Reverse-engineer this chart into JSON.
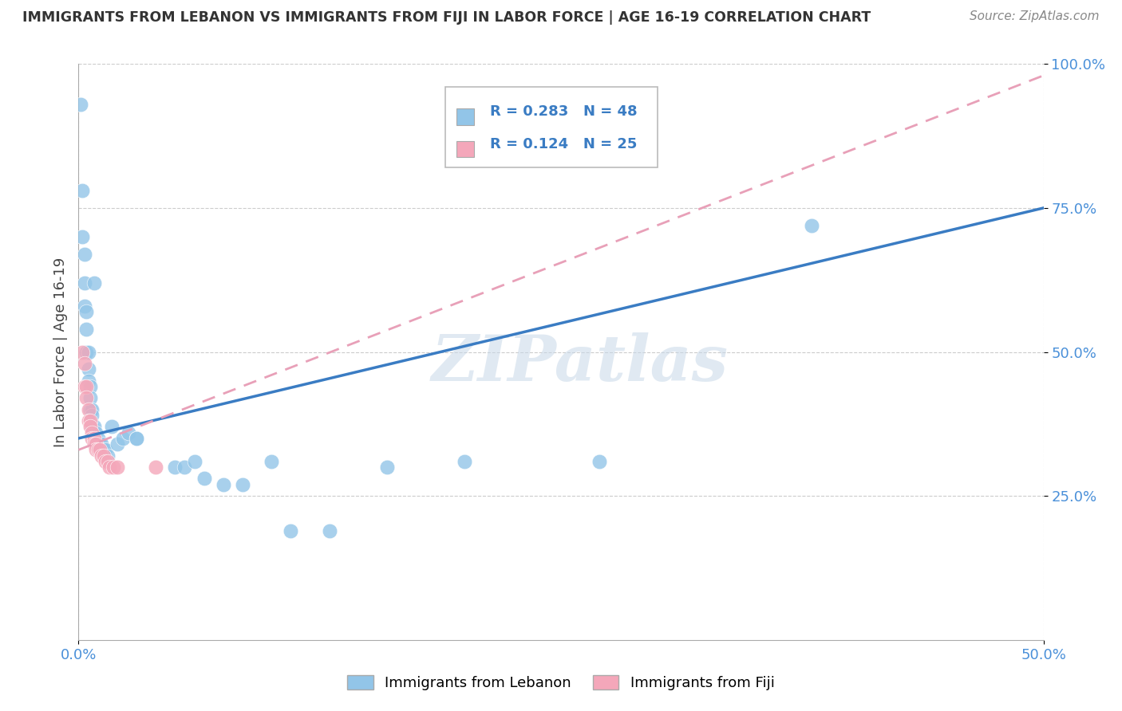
{
  "title": "IMMIGRANTS FROM LEBANON VS IMMIGRANTS FROM FIJI IN LABOR FORCE | AGE 16-19 CORRELATION CHART",
  "source": "Source: ZipAtlas.com",
  "ylabel": "In Labor Force | Age 16-19",
  "legend_r1": "R = 0.283",
  "legend_n1": "N = 48",
  "legend_r2": "R = 0.124",
  "legend_n2": "N = 25",
  "color_lebanon": "#92C5E8",
  "color_fiji": "#F4A7BA",
  "line_color_lebanon": "#3A7CC3",
  "line_color_fiji": "#E8A0B8",
  "watermark_text": "ZIPatlas",
  "lebanon_x": [
    0.001,
    0.002,
    0.002,
    0.003,
    0.003,
    0.003,
    0.004,
    0.004,
    0.004,
    0.005,
    0.005,
    0.005,
    0.006,
    0.006,
    0.006,
    0.007,
    0.007,
    0.007,
    0.008,
    0.008,
    0.009,
    0.009,
    0.01,
    0.01,
    0.011,
    0.012,
    0.013,
    0.014,
    0.015,
    0.017,
    0.02,
    0.023,
    0.026,
    0.03,
    0.03,
    0.05,
    0.055,
    0.06,
    0.065,
    0.075,
    0.085,
    0.1,
    0.11,
    0.13,
    0.16,
    0.2,
    0.27,
    0.38
  ],
  "lebanon_y": [
    0.93,
    0.78,
    0.7,
    0.67,
    0.62,
    0.58,
    0.57,
    0.54,
    0.5,
    0.5,
    0.47,
    0.45,
    0.44,
    0.42,
    0.4,
    0.4,
    0.39,
    0.37,
    0.37,
    0.62,
    0.36,
    0.35,
    0.35,
    0.34,
    0.34,
    0.34,
    0.33,
    0.33,
    0.32,
    0.37,
    0.34,
    0.35,
    0.36,
    0.35,
    0.35,
    0.3,
    0.3,
    0.31,
    0.28,
    0.27,
    0.27,
    0.31,
    0.19,
    0.19,
    0.3,
    0.31,
    0.31,
    0.72
  ],
  "fiji_x": [
    0.002,
    0.003,
    0.003,
    0.004,
    0.004,
    0.005,
    0.005,
    0.006,
    0.006,
    0.007,
    0.007,
    0.008,
    0.008,
    0.009,
    0.009,
    0.01,
    0.011,
    0.012,
    0.013,
    0.014,
    0.015,
    0.016,
    0.018,
    0.02,
    0.04
  ],
  "fiji_y": [
    0.5,
    0.48,
    0.44,
    0.44,
    0.42,
    0.4,
    0.38,
    0.38,
    0.37,
    0.36,
    0.35,
    0.35,
    0.34,
    0.34,
    0.33,
    0.33,
    0.33,
    0.32,
    0.32,
    0.31,
    0.31,
    0.3,
    0.3,
    0.3,
    0.3
  ],
  "xlim": [
    0.0,
    0.5
  ],
  "ylim": [
    0.0,
    1.0
  ],
  "x_ticks": [
    0.0,
    0.5
  ],
  "x_tick_labels": [
    "0.0%",
    "50.0%"
  ],
  "y_ticks": [
    0.25,
    0.5,
    0.75,
    1.0
  ],
  "y_tick_labels": [
    "25.0%",
    "50.0%",
    "75.0%",
    "100.0%"
  ]
}
